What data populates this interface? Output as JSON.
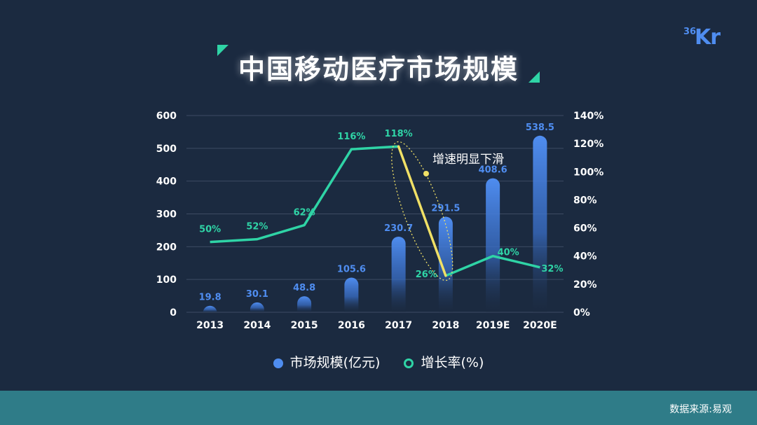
{
  "header": {
    "title": "中国移动医疗市场规模",
    "logo_small": "36",
    "logo_big": "Kr"
  },
  "footer": {
    "source": "数据来源:易观"
  },
  "legend": {
    "bar_label": "市场规模(亿元)",
    "line_label": "增长率(%)"
  },
  "colors": {
    "background": "#1b2a40",
    "bar": "#4f8df0",
    "line": "#2fd4a6",
    "highlight": "#f0e066",
    "footer": "#2f7c88",
    "grid": "#3d4b63"
  },
  "annotation": {
    "text": "增速明显下滑"
  },
  "chart_data": {
    "type": "bar",
    "title": "中国移动医疗市场规模",
    "categories": [
      "2013",
      "2014",
      "2015",
      "2016",
      "2017",
      "2018",
      "2019E",
      "2020E"
    ],
    "series": [
      {
        "name": "市场规模(亿元)",
        "type": "bar",
        "axis": "left",
        "values": [
          19.8,
          30.1,
          48.8,
          105.6,
          230.7,
          291.5,
          408.6,
          538.5
        ],
        "labels": [
          "19.8",
          "30.1",
          "48.8",
          "105.6",
          "230.7",
          "291.5",
          "408.6",
          "538.5"
        ]
      },
      {
        "name": "增长率(%)",
        "type": "line",
        "axis": "right",
        "values": [
          50,
          52,
          62,
          116,
          118,
          26,
          40,
          32
        ],
        "labels": [
          "50%",
          "52%",
          "62%",
          "116%",
          "118%",
          "26%",
          "40%",
          "32%"
        ]
      }
    ],
    "ylim_left": [
      0,
      600
    ],
    "yticks_left": [
      "0",
      "100",
      "200",
      "300",
      "400",
      "500",
      "600"
    ],
    "ylim_right": [
      0,
      140
    ],
    "yticks_right": [
      "0%",
      "20%",
      "40%",
      "60%",
      "80%",
      "100%",
      "120%",
      "140%"
    ],
    "grid": true,
    "legend_position": "bottom-center",
    "highlight_segment": [
      "2017",
      "2018"
    ]
  }
}
